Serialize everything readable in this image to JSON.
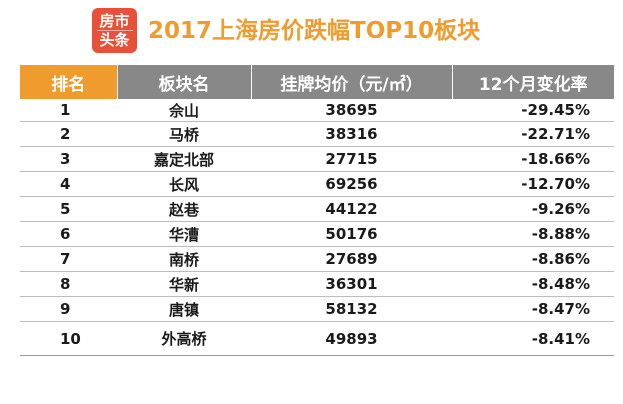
{
  "logo": {
    "line1": "房市",
    "line2": "头条",
    "color": "#e8503a"
  },
  "title": "2017上海房价跌幅TOP10板块",
  "colors": {
    "title": "#ef9b2e",
    "header_first": "#ef9b2e",
    "header_rest": "#888888"
  },
  "table": {
    "headers": [
      "排名",
      "板块名",
      "挂牌均价（元/㎡）",
      "12个月变化率"
    ],
    "rows": [
      {
        "rank": "1",
        "name": "佘山",
        "price": "38695",
        "change": "-29.45%"
      },
      {
        "rank": "2",
        "name": "马桥",
        "price": "38316",
        "change": "-22.71%"
      },
      {
        "rank": "3",
        "name": "嘉定北部",
        "price": "27715",
        "change": "-18.66%"
      },
      {
        "rank": "4",
        "name": "长风",
        "price": "69256",
        "change": "-12.70%"
      },
      {
        "rank": "5",
        "name": "赵巷",
        "price": "44122",
        "change": "-9.26%"
      },
      {
        "rank": "6",
        "name": "华漕",
        "price": "50176",
        "change": "-8.88%"
      },
      {
        "rank": "7",
        "name": "南桥",
        "price": "27689",
        "change": "-8.86%"
      },
      {
        "rank": "8",
        "name": "华新",
        "price": "36301",
        "change": "-8.48%"
      },
      {
        "rank": "9",
        "name": "唐镇",
        "price": "58132",
        "change": "-8.47%"
      },
      {
        "rank": "10",
        "name": "外高桥",
        "price": "49893",
        "change": "-8.41%"
      }
    ]
  }
}
